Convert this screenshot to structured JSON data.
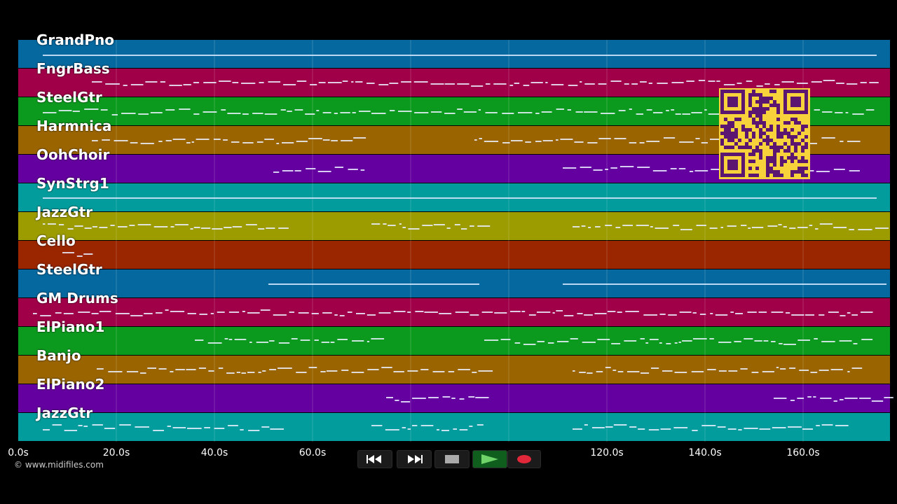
{
  "tracks": [
    {
      "name": "GrandPno",
      "color": "#05689f"
    },
    {
      "name": "FngrBass",
      "color": "#a00048"
    },
    {
      "name": "SteelGtr",
      "color": "#0c9a1e"
    },
    {
      "name": "Harmnica",
      "color": "#9a6500"
    },
    {
      "name": "OohChoir",
      "color": "#6500a0"
    },
    {
      "name": "SynStrg1",
      "color": "#029c9c"
    },
    {
      "name": "JazzGtr",
      "color": "#9c9c00"
    },
    {
      "name": "Cello",
      "color": "#9a2600"
    },
    {
      "name": "SteelGtr",
      "color": "#05689f"
    },
    {
      "name": "GM Drums",
      "color": "#a00048"
    },
    {
      "name": "ElPiano1",
      "color": "#0c9a1e"
    },
    {
      "name": "Banjo",
      "color": "#9a6500"
    },
    {
      "name": "ElPiano2",
      "color": "#6500a0"
    },
    {
      "name": "JazzGtr",
      "color": "#029c9c"
    }
  ],
  "timeline": {
    "ticks": [
      {
        "label": "0.0s",
        "t": 0
      },
      {
        "label": "20.0s",
        "t": 20
      },
      {
        "label": "40.0s",
        "t": 40
      },
      {
        "label": "60.0s",
        "t": 60
      },
      {
        "label": "120.0s",
        "t": 120
      },
      {
        "label": "140.0s",
        "t": 140
      },
      {
        "label": "160.0s",
        "t": 160
      }
    ],
    "gridlines_s": [
      20,
      40,
      60,
      80,
      100,
      120,
      140,
      160
    ]
  },
  "copyright": "© www.midifiles.com",
  "transport": {
    "rewind": "rewind-icon",
    "fast_forward": "fast-forward-icon",
    "stop": "stop-icon",
    "play": "play-icon",
    "record": "record-icon"
  },
  "qr": "qr-code"
}
